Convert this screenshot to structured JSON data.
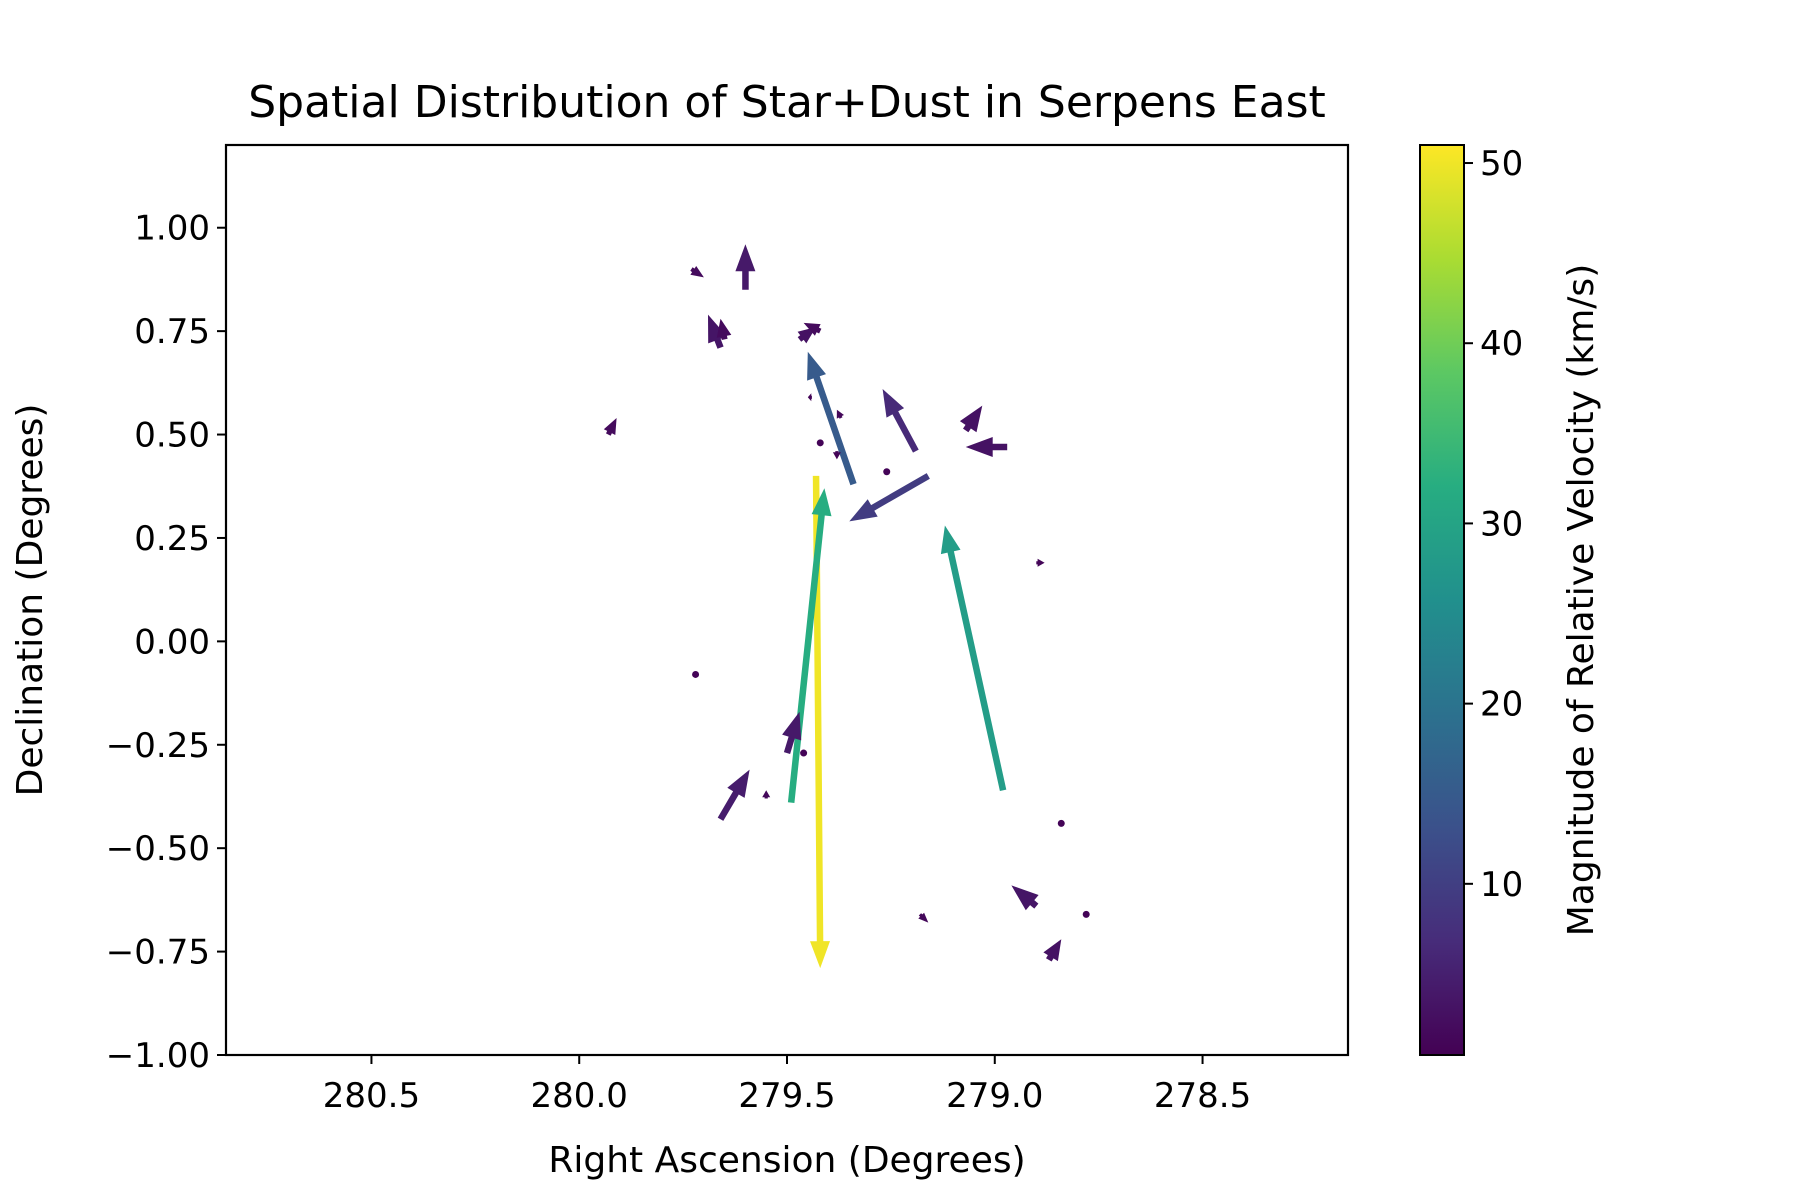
{
  "chart_data": {
    "type": "quiver",
    "title": "Spatial Distribution of Star+Dust in Serpens East",
    "xlabel": "Right Ascension (Degrees)",
    "ylabel": "Declination (Degrees)",
    "xlim": [
      280.85,
      278.15
    ],
    "ylim": [
      -1.0,
      1.2
    ],
    "x_ticks": [
      280.5,
      280.0,
      279.5,
      279.0,
      278.5
    ],
    "x_tick_labels": [
      "280.5",
      "280.0",
      "279.5",
      "279.0",
      "278.5"
    ],
    "y_ticks": [
      1.0,
      0.75,
      0.5,
      0.25,
      0.0,
      -0.25,
      -0.5,
      -0.75,
      -1.0
    ],
    "y_tick_labels": [
      "1.00",
      "0.75",
      "0.50",
      "0.25",
      "0.00",
      "−0.25",
      "−0.50",
      "−0.75",
      "−1.00"
    ],
    "grid": false,
    "colorbar": {
      "label": "Magnitude of Relative Velocity (km/s)",
      "range": [
        0.5,
        51.0
      ],
      "ticks": [
        10,
        20,
        30,
        40,
        50
      ],
      "tick_labels": [
        "10",
        "20",
        "30",
        "40",
        "50"
      ],
      "colormap": "viridis"
    },
    "arrows": [
      {
        "x": 279.43,
        "y": 0.4,
        "dx": -0.01,
        "dy": -1.19,
        "mag": 50.0
      },
      {
        "x": 279.49,
        "y": -0.39,
        "dx": -0.08,
        "dy": 0.76,
        "mag": 32.0
      },
      {
        "x": 278.98,
        "y": -0.36,
        "dx": 0.14,
        "dy": 0.64,
        "mag": 28.5
      },
      {
        "x": 279.34,
        "y": 0.38,
        "dx": 0.11,
        "dy": 0.32,
        "mag": 15.0
      },
      {
        "x": 279.16,
        "y": 0.4,
        "dx": 0.19,
        "dy": -0.11,
        "mag": 9.5
      },
      {
        "x": 279.19,
        "y": 0.46,
        "dx": 0.08,
        "dy": 0.15,
        "mag": 6.5
      },
      {
        "x": 279.6,
        "y": 0.85,
        "dx": 0.0,
        "dy": 0.11,
        "mag": 4.0
      },
      {
        "x": 279.66,
        "y": 0.71,
        "dx": 0.03,
        "dy": 0.08,
        "mag": 3.5
      },
      {
        "x": 279.66,
        "y": -0.43,
        "dx": -0.07,
        "dy": 0.12,
        "mag": 4.5
      },
      {
        "x": 279.5,
        "y": -0.27,
        "dx": -0.03,
        "dy": 0.1,
        "mag": 4.0
      },
      {
        "x": 279.47,
        "y": 0.73,
        "dx": -0.04,
        "dy": 0.03,
        "mag": 3.0
      },
      {
        "x": 279.07,
        "y": 0.51,
        "dx": -0.04,
        "dy": 0.06,
        "mag": 3.0
      },
      {
        "x": 278.97,
        "y": 0.47,
        "dx": 0.1,
        "dy": 0.0,
        "mag": 3.0
      },
      {
        "x": 278.9,
        "y": -0.64,
        "dx": 0.06,
        "dy": 0.05,
        "mag": 3.5
      },
      {
        "x": 278.87,
        "y": -0.77,
        "dx": -0.03,
        "dy": 0.05,
        "mag": 3.0
      },
      {
        "x": 279.93,
        "y": 0.5,
        "dx": -0.02,
        "dy": 0.04,
        "mag": 2.0
      },
      {
        "x": 279.73,
        "y": 0.9,
        "dx": -0.03,
        "dy": -0.02,
        "mag": 2.0
      },
      {
        "x": 279.65,
        "y": 0.73,
        "dx": 0.01,
        "dy": 0.05,
        "mag": 2.0
      },
      {
        "x": 279.42,
        "y": 0.75,
        "dx": 0.04,
        "dy": 0.02,
        "mag": 2.0
      },
      {
        "x": 279.37,
        "y": 0.54,
        "dx": 0.01,
        "dy": 0.02,
        "mag": 1.5
      },
      {
        "x": 279.55,
        "y": -0.38,
        "dx": 0.0,
        "dy": 0.02,
        "mag": 1.5
      },
      {
        "x": 279.18,
        "y": -0.66,
        "dx": -0.02,
        "dy": -0.02,
        "mag": 1.5
      },
      {
        "x": 278.9,
        "y": 0.19,
        "dx": -0.02,
        "dy": 0.0,
        "mag": 1.2
      },
      {
        "x": 279.38,
        "y": 0.46,
        "dx": 0.0,
        "dy": -0.02,
        "mag": 1.0
      },
      {
        "x": 279.72,
        "y": -0.08,
        "dx": 0.0,
        "dy": 0.0,
        "mag": 1.0
      },
      {
        "x": 279.46,
        "y": -0.27,
        "dx": 0.0,
        "dy": 0.0,
        "mag": 1.0
      },
      {
        "x": 279.42,
        "y": 0.48,
        "dx": 0.0,
        "dy": 0.0,
        "mag": 1.0
      },
      {
        "x": 279.26,
        "y": 0.41,
        "dx": 0.0,
        "dy": 0.0,
        "mag": 1.0
      },
      {
        "x": 278.84,
        "y": -0.44,
        "dx": 0.0,
        "dy": 0.0,
        "mag": 1.0
      },
      {
        "x": 278.78,
        "y": -0.66,
        "dx": 0.0,
        "dy": 0.0,
        "mag": 1.0
      },
      {
        "x": 279.44,
        "y": 0.59,
        "dx": 0.01,
        "dy": 0.0,
        "mag": 1.0
      }
    ]
  }
}
